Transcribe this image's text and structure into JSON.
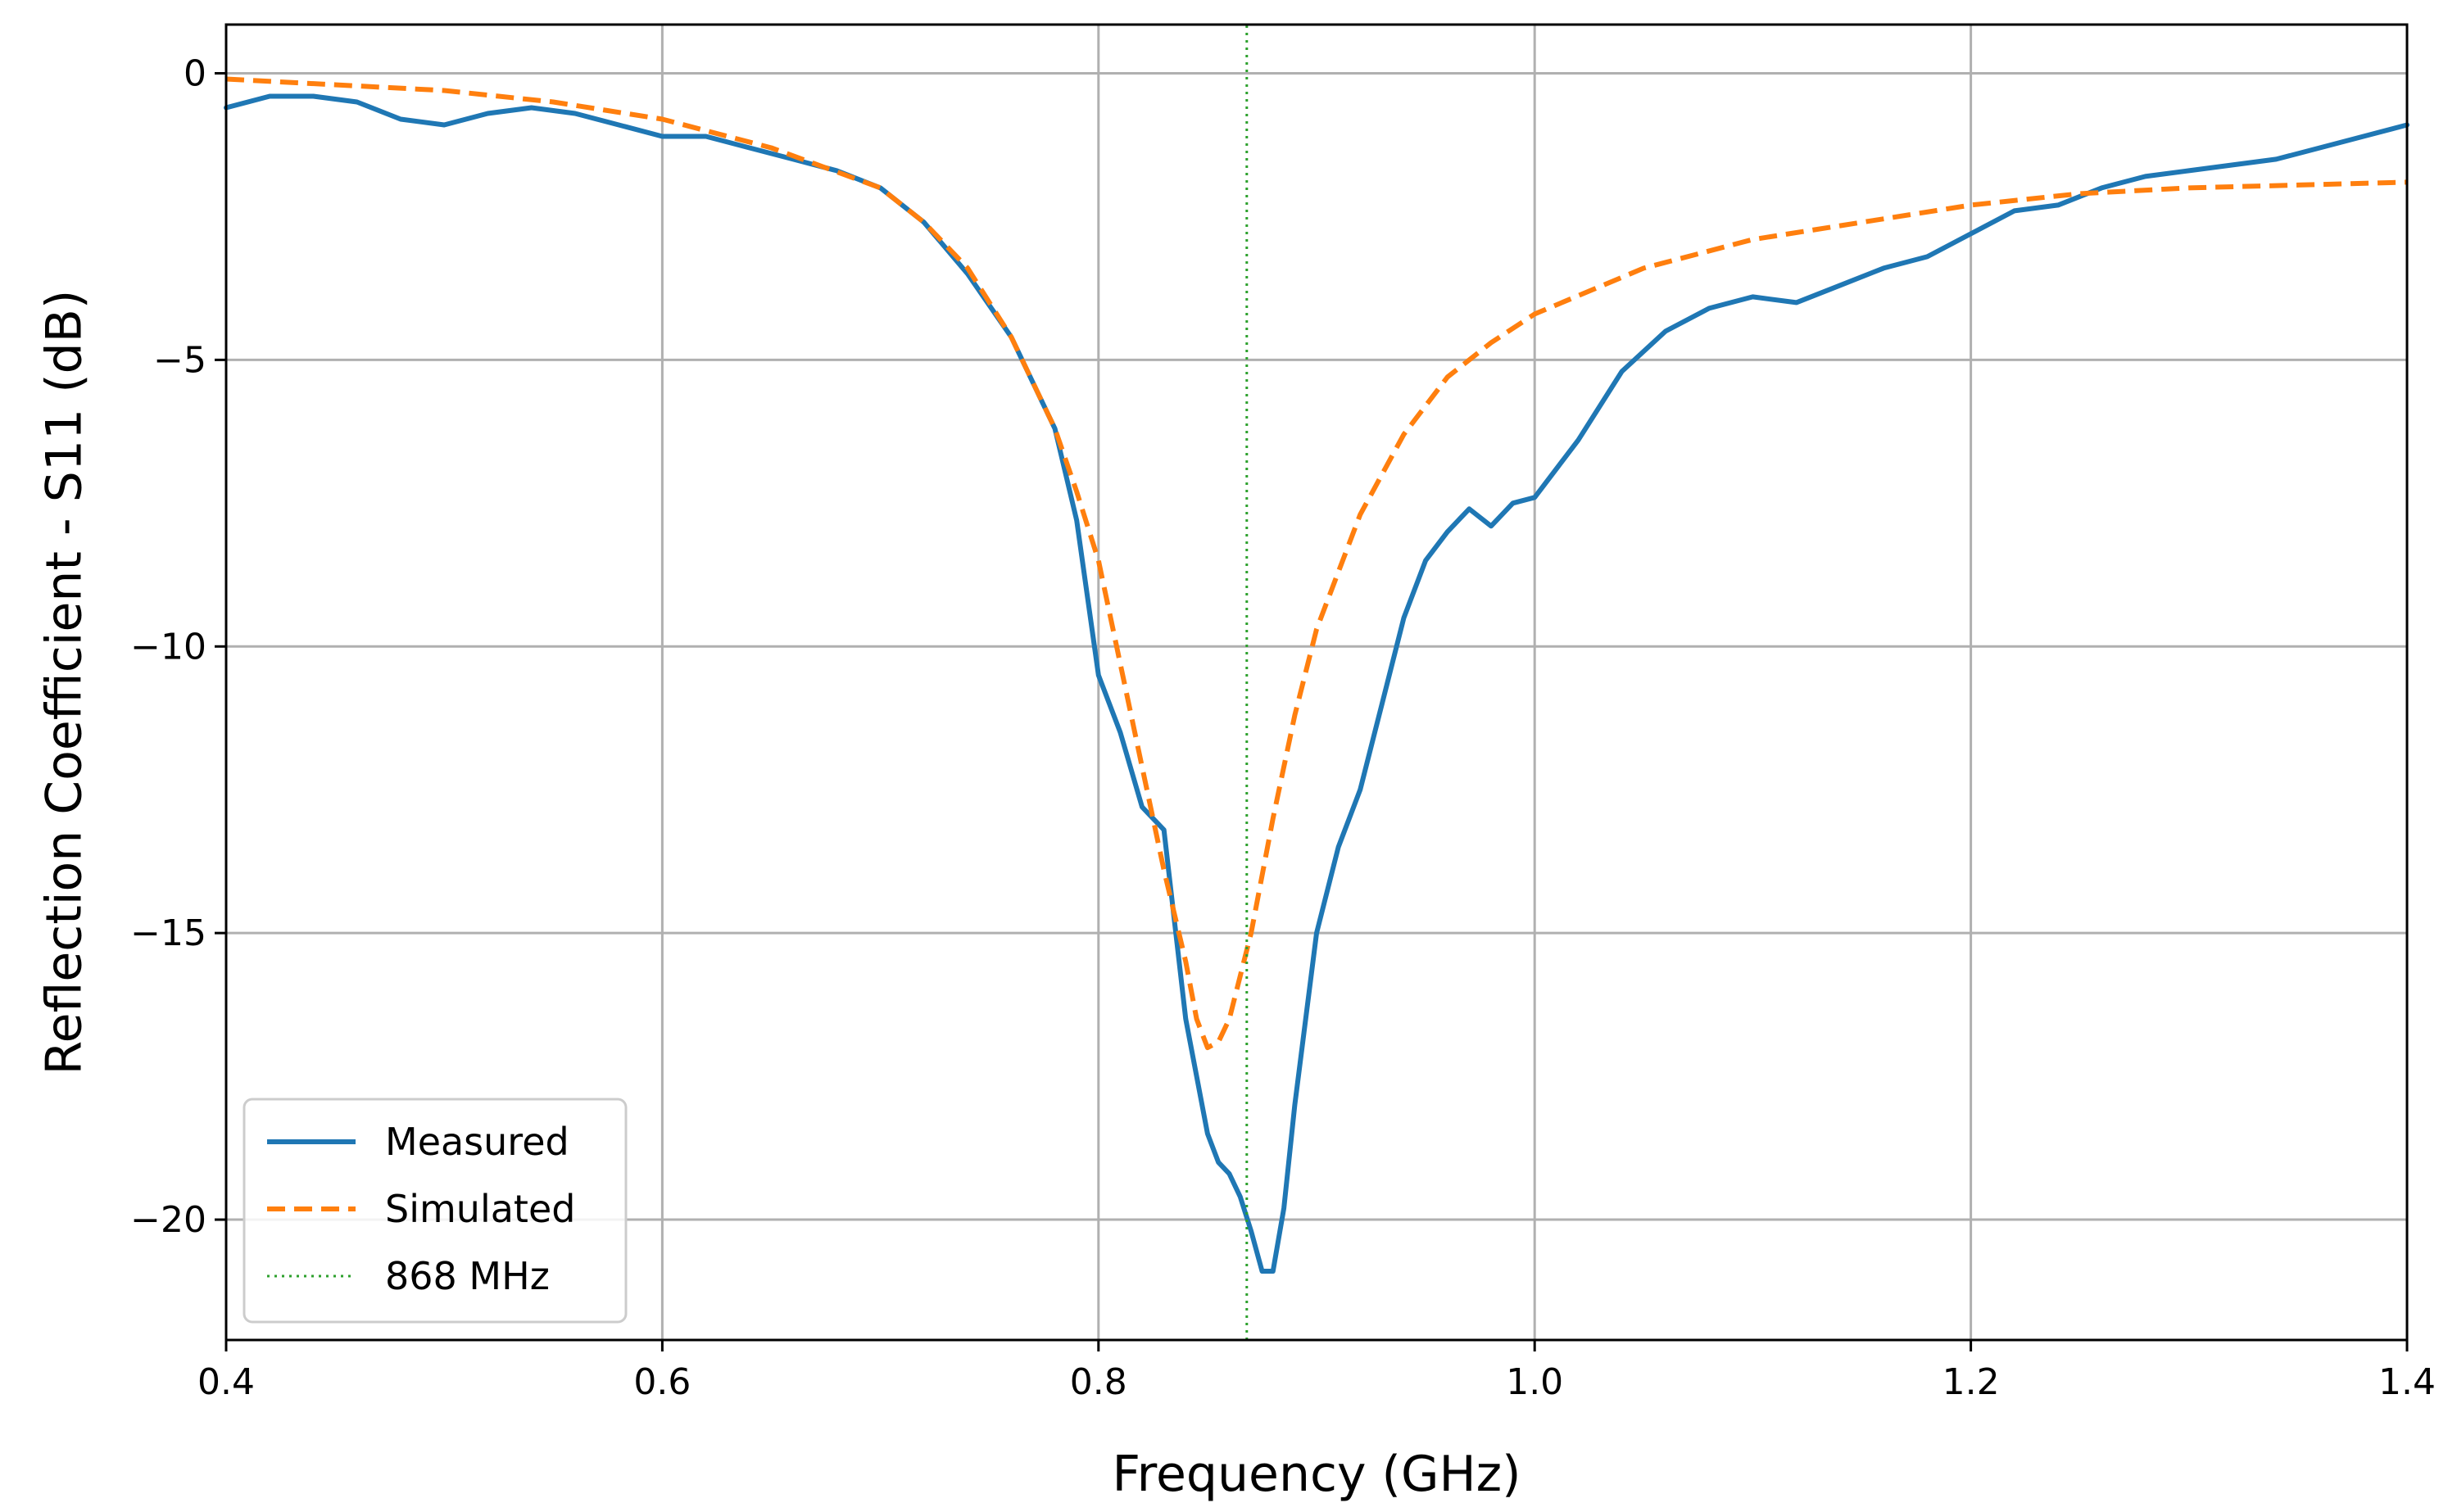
{
  "chart_data": {
    "type": "line",
    "title": "",
    "xlabel": "Frequency (GHz)",
    "ylabel": "Reflection Coefficient - S11 (dB)",
    "xlim": [
      0.4,
      1.4
    ],
    "ylim": [
      -22.1,
      0.85
    ],
    "grid": true,
    "legend_position": "lower-left",
    "x_ticks": [
      0.4,
      0.6,
      0.8,
      1.0,
      1.2,
      1.4
    ],
    "x_tick_labels": [
      "0.4",
      "0.6",
      "0.8",
      "1.0",
      "1.2",
      "1.4"
    ],
    "y_ticks": [
      0,
      -5,
      -10,
      -15,
      -20
    ],
    "y_tick_labels": [
      "0",
      "−5",
      "−10",
      "−15",
      "−20"
    ],
    "series": [
      {
        "name": "Measured",
        "style": "solid",
        "color": "#1f77b4",
        "x": [
          0.4,
          0.42,
          0.44,
          0.46,
          0.48,
          0.5,
          0.52,
          0.54,
          0.56,
          0.58,
          0.6,
          0.62,
          0.64,
          0.66,
          0.68,
          0.7,
          0.72,
          0.74,
          0.76,
          0.77,
          0.78,
          0.79,
          0.8,
          0.81,
          0.82,
          0.83,
          0.84,
          0.845,
          0.85,
          0.855,
          0.86,
          0.865,
          0.87,
          0.875,
          0.88,
          0.885,
          0.89,
          0.9,
          0.91,
          0.92,
          0.93,
          0.94,
          0.95,
          0.96,
          0.97,
          0.98,
          0.99,
          1.0,
          1.02,
          1.04,
          1.06,
          1.08,
          1.1,
          1.12,
          1.14,
          1.16,
          1.18,
          1.2,
          1.22,
          1.24,
          1.26,
          1.28,
          1.3,
          1.32,
          1.34,
          1.36,
          1.38,
          1.4
        ],
        "y": [
          -0.6,
          -0.4,
          -0.4,
          -0.5,
          -0.8,
          -0.9,
          -0.7,
          -0.6,
          -0.7,
          -0.9,
          -1.1,
          -1.1,
          -1.3,
          -1.5,
          -1.7,
          -2.0,
          -2.6,
          -3.5,
          -4.6,
          -5.4,
          -6.2,
          -7.8,
          -10.5,
          -11.5,
          -12.8,
          -13.2,
          -16.5,
          -17.5,
          -18.5,
          -19.0,
          -19.2,
          -19.6,
          -20.2,
          -20.9,
          -20.9,
          -19.8,
          -18.0,
          -15.0,
          -13.5,
          -12.5,
          -11.0,
          -9.5,
          -8.5,
          -8.0,
          -7.6,
          -7.9,
          -7.5,
          -7.4,
          -6.4,
          -5.2,
          -4.5,
          -4.1,
          -3.9,
          -4.0,
          -3.7,
          -3.4,
          -3.2,
          -2.8,
          -2.4,
          -2.3,
          -2.0,
          -1.8,
          -1.7,
          -1.6,
          -1.5,
          -1.3,
          -1.1,
          -0.9
        ]
      },
      {
        "name": "Simulated",
        "style": "dashed",
        "color": "#ff7f0e",
        "x": [
          0.4,
          0.45,
          0.5,
          0.55,
          0.6,
          0.65,
          0.7,
          0.72,
          0.74,
          0.76,
          0.78,
          0.79,
          0.8,
          0.81,
          0.82,
          0.83,
          0.84,
          0.845,
          0.85,
          0.855,
          0.86,
          0.87,
          0.88,
          0.89,
          0.9,
          0.92,
          0.94,
          0.96,
          0.98,
          1.0,
          1.05,
          1.1,
          1.15,
          1.2,
          1.25,
          1.3,
          1.35,
          1.4
        ],
        "y": [
          -0.1,
          -0.2,
          -0.3,
          -0.5,
          -0.8,
          -1.3,
          -2.0,
          -2.6,
          -3.4,
          -4.6,
          -6.2,
          -7.3,
          -8.5,
          -10.3,
          -12.1,
          -13.9,
          -15.5,
          -16.5,
          -17.0,
          -16.9,
          -16.5,
          -15.0,
          -13.0,
          -11.2,
          -9.7,
          -7.7,
          -6.3,
          -5.3,
          -4.7,
          -4.2,
          -3.4,
          -2.9,
          -2.6,
          -2.3,
          -2.1,
          -2.0,
          -1.95,
          -1.9
        ]
      },
      {
        "name": "868 MHz",
        "style": "dotted",
        "color": "#2ca02c",
        "x": [
          0.868,
          0.868
        ],
        "y": [
          -22.1,
          0.85
        ]
      }
    ]
  }
}
